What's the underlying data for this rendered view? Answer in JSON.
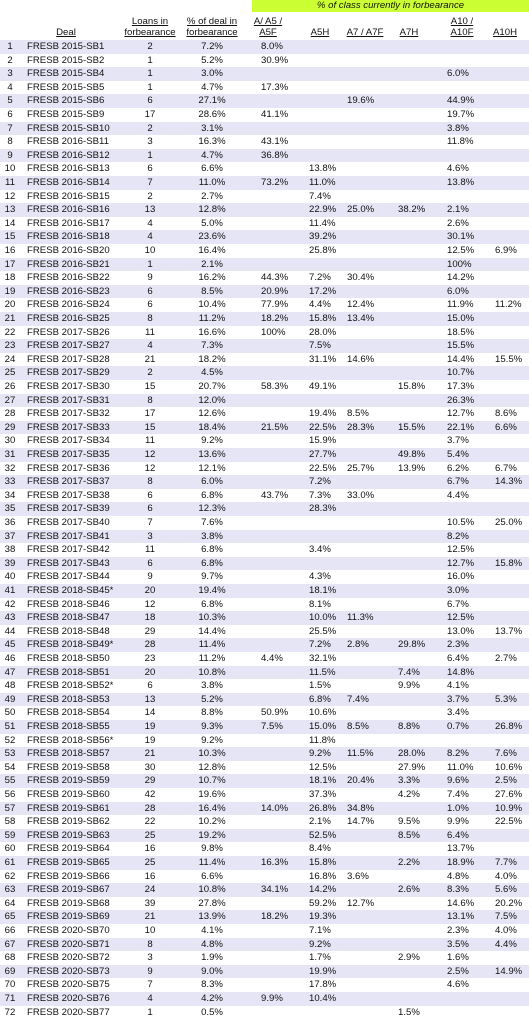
{
  "header": {
    "banner": "% of class currently in forbearance",
    "columns": [
      "Deal",
      "Loans in forbearance",
      "% of deal in forbearance",
      "A/ A5 / A5F",
      "A5H",
      "A7 / A7F",
      "A7H",
      "A10 / A10F",
      "A10H"
    ]
  },
  "table": {
    "rows": [
      [
        "1",
        "FRESB 2015-SB1",
        "2",
        "7.2%",
        "8.0%",
        null,
        null,
        null,
        null,
        null
      ],
      [
        "2",
        "FRESB 2015-SB2",
        "1",
        "5.2%",
        "30.9%",
        null,
        null,
        null,
        null,
        null
      ],
      [
        "3",
        "FRESB 2015-SB4",
        "1",
        "3.0%",
        null,
        null,
        null,
        null,
        "6.0%",
        null
      ],
      [
        "4",
        "FRESB 2015-SB5",
        "1",
        "4.7%",
        "17.3%",
        null,
        null,
        null,
        null,
        null
      ],
      [
        "5",
        "FRESB 2015-SB6",
        "6",
        "27.1%",
        null,
        null,
        "19.6%",
        null,
        "44.9%",
        null
      ],
      [
        "6",
        "FRESB 2015-SB9",
        "17",
        "28.6%",
        "41.1%",
        null,
        null,
        null,
        "19.7%",
        null
      ],
      [
        "7",
        "FRESB 2015-SB10",
        "2",
        "3.1%",
        null,
        null,
        null,
        null,
        "3.8%",
        null
      ],
      [
        "8",
        "FRESB 2016-SB11",
        "3",
        "16.3%",
        "43.1%",
        null,
        null,
        null,
        "11.8%",
        null
      ],
      [
        "9",
        "FRESB 2016-SB12",
        "1",
        "4.7%",
        "36.8%",
        null,
        null,
        null,
        null,
        null
      ],
      [
        "10",
        "FRESB 2016-SB13",
        "6",
        "6.6%",
        null,
        "13.8%",
        null,
        null,
        "4.6%",
        null
      ],
      [
        "11",
        "FRESB 2016-SB14",
        "7",
        "11.0%",
        "73.2%",
        "11.0%",
        null,
        null,
        "13.8%",
        null
      ],
      [
        "12",
        "FRESB 2016-SB15",
        "2",
        "2.7%",
        null,
        "7.4%",
        null,
        null,
        null,
        null
      ],
      [
        "13",
        "FRESB 2016-SB16",
        "13",
        "12.8%",
        null,
        "22.9%",
        "25.0%",
        "38.2%",
        "2.1%",
        null
      ],
      [
        "14",
        "FRESB 2016-SB17",
        "4",
        "5.0%",
        null,
        "11.4%",
        null,
        null,
        "2.6%",
        null
      ],
      [
        "15",
        "FRESB 2016-SB18",
        "4",
        "23.6%",
        null,
        "39.2%",
        null,
        null,
        "30.1%",
        null
      ],
      [
        "16",
        "FRESB 2016-SB20",
        "10",
        "16.4%",
        null,
        "25.8%",
        null,
        null,
        "12.5%",
        "6.9%"
      ],
      [
        "17",
        "FRESB 2016-SB21",
        "1",
        "2.1%",
        null,
        null,
        null,
        null,
        "100%",
        null
      ],
      [
        "18",
        "FRESB 2016-SB22",
        "9",
        "16.2%",
        "44.3%",
        "7.2%",
        "30.4%",
        null,
        "14.2%",
        null
      ],
      [
        "19",
        "FRESB 2016-SB23",
        "6",
        "8.5%",
        "20.9%",
        "17.2%",
        null,
        null,
        "6.0%",
        null
      ],
      [
        "20",
        "FRESB 2016-SB24",
        "6",
        "10.4%",
        "77.9%",
        "4.4%",
        "12.4%",
        null,
        "11.9%",
        "11.2%"
      ],
      [
        "21",
        "FRESB 2016-SB25",
        "8",
        "11.2%",
        "18.2%",
        "15.8%",
        "13.4%",
        null,
        "15.0%",
        null
      ],
      [
        "22",
        "FRESB 2017-SB26",
        "11",
        "16.6%",
        "100%",
        "28.0%",
        null,
        null,
        "18.5%",
        null
      ],
      [
        "23",
        "FRESB 2017-SB27",
        "4",
        "7.3%",
        null,
        "7.5%",
        null,
        null,
        "15.5%",
        null
      ],
      [
        "24",
        "FRESB 2017-SB28",
        "21",
        "18.2%",
        null,
        "31.1%",
        "14.6%",
        null,
        "14.4%",
        "15.5%"
      ],
      [
        "25",
        "FRESB 2017-SB29",
        "2",
        "4.5%",
        null,
        null,
        null,
        null,
        "10.7%",
        null
      ],
      [
        "26",
        "FRESB 2017-SB30",
        "15",
        "20.7%",
        "58.3%",
        "49.1%",
        null,
        "15.8%",
        "17.3%",
        null
      ],
      [
        "27",
        "FRESB 2017-SB31",
        "8",
        "12.0%",
        null,
        null,
        null,
        null,
        "26.3%",
        null
      ],
      [
        "28",
        "FRESB 2017-SB32",
        "17",
        "12.6%",
        null,
        "19.4%",
        "8.5%",
        null,
        "12.7%",
        "8.6%"
      ],
      [
        "29",
        "FRESB 2017-SB33",
        "15",
        "18.4%",
        "21.5%",
        "22.5%",
        "28.3%",
        "15.5%",
        "22.1%",
        "6.6%"
      ],
      [
        "30",
        "FRESB 2017-SB34",
        "11",
        "9.2%",
        null,
        "15.9%",
        null,
        null,
        "3.7%",
        null
      ],
      [
        "31",
        "FRESB 2017-SB35",
        "12",
        "13.6%",
        null,
        "27.7%",
        null,
        "49.8%",
        "5.4%",
        null
      ],
      [
        "32",
        "FRESB 2017-SB36",
        "12",
        "12.1%",
        null,
        "22.5%",
        "25.7%",
        "13.9%",
        "6.2%",
        "6.7%"
      ],
      [
        "33",
        "FRESB 2017-SB37",
        "8",
        "6.0%",
        null,
        "7.2%",
        null,
        null,
        "6.7%",
        "14.3%"
      ],
      [
        "34",
        "FRESB 2017-SB38",
        "6",
        "6.8%",
        "43.7%",
        "7.3%",
        "33.0%",
        null,
        "4.4%",
        null
      ],
      [
        "35",
        "FRESB 2017-SB39",
        "6",
        "12.3%",
        null,
        "28.3%",
        null,
        null,
        null,
        null
      ],
      [
        "36",
        "FRESB 2017-SB40",
        "7",
        "7.6%",
        null,
        null,
        null,
        null,
        "10.5%",
        "25.0%"
      ],
      [
        "37",
        "FRESB 2017-SB41",
        "3",
        "3.8%",
        null,
        null,
        null,
        null,
        "8.2%",
        null
      ],
      [
        "38",
        "FRESB 2017-SB42",
        "11",
        "6.8%",
        null,
        "3.4%",
        null,
        null,
        "12.5%",
        null
      ],
      [
        "39",
        "FRESB 2017-SB43",
        "6",
        "6.8%",
        null,
        null,
        null,
        null,
        "12.7%",
        "15.8%"
      ],
      [
        "40",
        "FRESB 2017-SB44",
        "9",
        "9.7%",
        null,
        "4.3%",
        null,
        null,
        "16.0%",
        null
      ],
      [
        "41",
        "FRESB 2018-SB45*",
        "20",
        "19.4%",
        null,
        "18.1%",
        null,
        null,
        "3.0%",
        null
      ],
      [
        "42",
        "FRESB 2018-SB46",
        "12",
        "6.8%",
        null,
        "8.1%",
        null,
        null,
        "6.7%",
        null
      ],
      [
        "43",
        "FRESB 2018-SB47",
        "18",
        "10.3%",
        null,
        "10.0%",
        "11.3%",
        null,
        "12.5%",
        null
      ],
      [
        "44",
        "FRESB 2018-SB48",
        "29",
        "14.4%",
        null,
        "25.5%",
        null,
        null,
        "13.0%",
        "13.7%"
      ],
      [
        "45",
        "FRESB 2018-SB49*",
        "28",
        "11.4%",
        null,
        "7.2%",
        "2.8%",
        "29.8%",
        "2.3%",
        null
      ],
      [
        "46",
        "FRESB 2018-SB50",
        "23",
        "11.2%",
        "4.4%",
        "32.1%",
        null,
        null,
        "6.4%",
        "2.7%"
      ],
      [
        "47",
        "FRESB 2018-SB51",
        "20",
        "10.8%",
        null,
        "11.5%",
        null,
        "7.4%",
        "14.8%",
        null
      ],
      [
        "48",
        "FRESB 2018-SB52*",
        "6",
        "3.8%",
        null,
        "1.5%",
        null,
        "9.9%",
        "4.1%",
        null
      ],
      [
        "49",
        "FRESB 2018-SB53",
        "13",
        "5.2%",
        null,
        "6.8%",
        "7.4%",
        null,
        "3.7%",
        "5.3%"
      ],
      [
        "50",
        "FRESB 2018-SB54",
        "14",
        "8.8%",
        "50.9%",
        "10.6%",
        null,
        null,
        "3.4%",
        null
      ],
      [
        "51",
        "FRESB 2018-SB55",
        "19",
        "9.3%",
        "7.5%",
        "15.0%",
        "8.5%",
        "8.8%",
        "0.7%",
        "26.8%"
      ],
      [
        "52",
        "FRESB 2018-SB56*",
        "19",
        "9.2%",
        null,
        "11.8%",
        null,
        null,
        null,
        null
      ],
      [
        "53",
        "FRESB 2018-SB57",
        "21",
        "10.3%",
        null,
        "9.2%",
        "11.5%",
        "28.0%",
        "8.2%",
        "7.6%"
      ],
      [
        "54",
        "FRESB 2019-SB58",
        "30",
        "12.8%",
        null,
        "12.5%",
        null,
        "27.9%",
        "11.0%",
        "10.6%"
      ],
      [
        "55",
        "FRESB 2019-SB59",
        "29",
        "10.7%",
        null,
        "18.1%",
        "20.4%",
        "3.3%",
        "9.6%",
        "2.5%"
      ],
      [
        "56",
        "FRESB 2019-SB60",
        "42",
        "19.6%",
        null,
        "37.3%",
        null,
        "4.2%",
        "7.4%",
        "27.6%"
      ],
      [
        "57",
        "FRESB 2019-SB61",
        "28",
        "16.4%",
        "14.0%",
        "26.8%",
        "34.8%",
        null,
        "1.0%",
        "10.9%"
      ],
      [
        "58",
        "FRESB 2019-SB62",
        "22",
        "10.2%",
        null,
        "2.1%",
        "14.7%",
        "9.5%",
        "9.9%",
        "22.5%"
      ],
      [
        "59",
        "FRESB 2019-SB63",
        "25",
        "19.2%",
        null,
        "52.5%",
        null,
        "8.5%",
        "6.4%",
        null
      ],
      [
        "60",
        "FRESB 2019-SB64",
        "16",
        "9.8%",
        null,
        "8.4%",
        null,
        null,
        "13.7%",
        null
      ],
      [
        "61",
        "FRESB 2019-SB65",
        "25",
        "11.4%",
        "16.3%",
        "15.8%",
        null,
        "2.2%",
        "18.9%",
        "7.7%"
      ],
      [
        "62",
        "FRESB 2019-SB66",
        "16",
        "6.6%",
        null,
        "16.8%",
        "3.6%",
        null,
        "4.8%",
        "4.0%"
      ],
      [
        "63",
        "FRESB 2019-SB67",
        "24",
        "10.8%",
        "34.1%",
        "14.2%",
        null,
        "2.6%",
        "8.3%",
        "5.6%"
      ],
      [
        "64",
        "FRESB 2019-SB68",
        "39",
        "27.8%",
        null,
        "59.2%",
        "12.7%",
        null,
        "14.6%",
        "20.2%"
      ],
      [
        "65",
        "FRESB 2019-SB69",
        "21",
        "13.9%",
        "18.2%",
        "19.3%",
        null,
        null,
        "13.1%",
        "7.5%"
      ],
      [
        "66",
        "FRESB 2020-SB70",
        "10",
        "4.1%",
        null,
        "7.1%",
        null,
        null,
        "2.3%",
        "4.0%"
      ],
      [
        "67",
        "FRESB 2020-SB71",
        "8",
        "4.8%",
        null,
        "9.2%",
        null,
        null,
        "3.5%",
        "4.4%"
      ],
      [
        "68",
        "FRESB 2020-SB72",
        "3",
        "1.9%",
        null,
        "1.7%",
        null,
        "2.9%",
        "1.6%",
        null
      ],
      [
        "69",
        "FRESB 2020-SB73",
        "9",
        "9.0%",
        null,
        "19.9%",
        null,
        null,
        "2.5%",
        "14.9%"
      ],
      [
        "70",
        "FRESB 2020-SB75",
        "7",
        "8.3%",
        null,
        "17.8%",
        null,
        null,
        "4.6%",
        null
      ],
      [
        "71",
        "FRESB 2020-SB76",
        "4",
        "4.2%",
        "9.9%",
        "10.4%",
        null,
        null,
        null,
        null
      ],
      [
        "72",
        "FRESB 2020-SB77",
        "1",
        "0.5%",
        null,
        null,
        null,
        "1.5%",
        null,
        null
      ]
    ]
  }
}
